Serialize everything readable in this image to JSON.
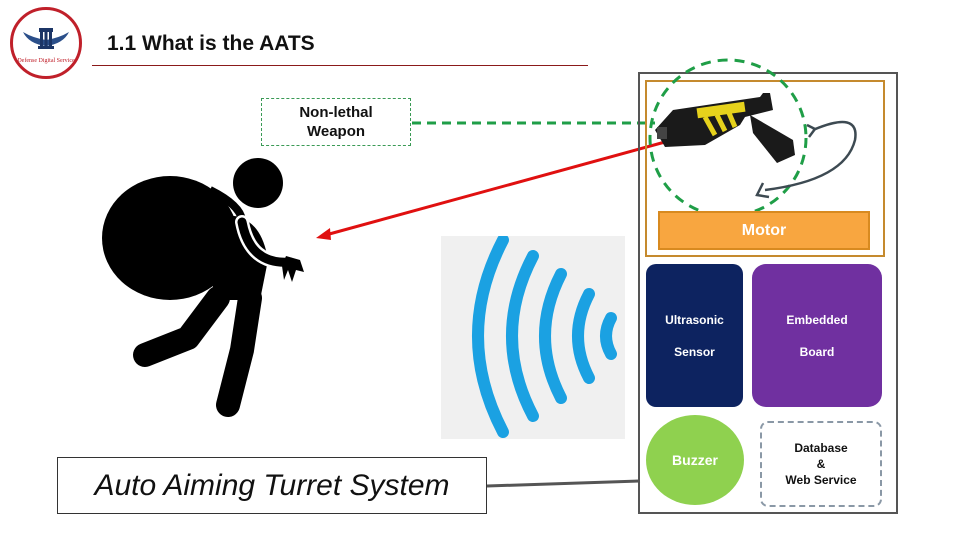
{
  "logo": {
    "text": "Defense Digital Service"
  },
  "header": {
    "title": "1.1 What is the AATS"
  },
  "callout": {
    "line1": "Non-lethal",
    "line2": "Weapon"
  },
  "components": {
    "motor": "Motor",
    "ultrasonic_line1": "Ultrasonic",
    "ultrasonic_line2": "Sensor",
    "embedded_line1": "Embedded",
    "embedded_line2": "Board",
    "buzzer": "Buzzer",
    "db_line1": "Database",
    "db_line2": "&",
    "db_line3": "Web Service"
  },
  "system_label": "Auto Aiming Turret System",
  "icons": [
    "logo-emblem",
    "thief-with-sack-icon",
    "taser-gun-icon",
    "rotation-arrow-icon",
    "signal-waves-icon"
  ],
  "colors": {
    "title_rule": "#8b1a1a",
    "callout_dash": "#3a9a55",
    "laser": "#e01010",
    "motor": "#f8a640",
    "ultrasonic": "#0d2360",
    "embedded": "#7030a0",
    "buzzer": "#8fd14f",
    "waves": "#1ba1e2"
  }
}
